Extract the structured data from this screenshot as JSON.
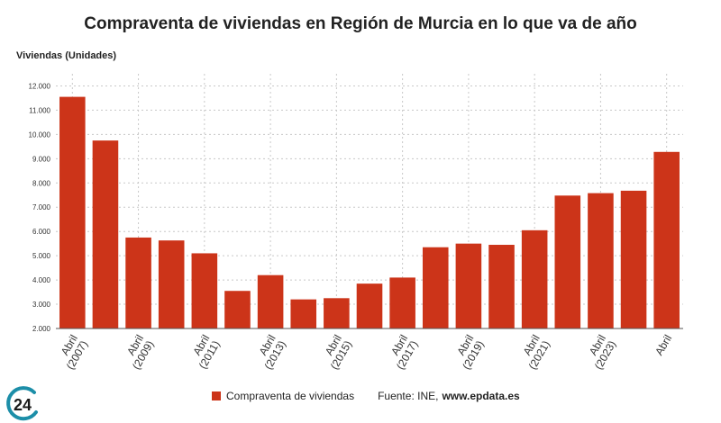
{
  "chart_data": {
    "type": "bar",
    "title": "Compraventa de viviendas en Región de Murcia en lo que va de año",
    "ylabel": "Viviendas (Unidades)",
    "xlabel": "",
    "ylim": [
      2000,
      12500
    ],
    "yticks": [
      2000,
      3000,
      4000,
      5000,
      6000,
      7000,
      8000,
      9000,
      10000,
      11000,
      12000
    ],
    "ytick_labels": [
      "2.000",
      "3.000",
      "4.000",
      "5.000",
      "6.000",
      "7.000",
      "8.000",
      "9.000",
      "10.000",
      "11.000",
      "12.000"
    ],
    "categories": [
      "Abril (2007)",
      "",
      "Abril (2009)",
      "",
      "Abril (2011)",
      "",
      "Abril (2013)",
      "",
      "Abril (2015)",
      "",
      "Abril (2017)",
      "",
      "Abril (2019)",
      "",
      "Abril (2021)",
      "",
      "Abril (2023)",
      "",
      "Abril"
    ],
    "series": [
      {
        "name": "Compraventa de viviendas",
        "values": [
          11550,
          9750,
          5750,
          5630,
          5100,
          3550,
          4200,
          3200,
          3250,
          3850,
          4100,
          5350,
          5500,
          5450,
          6050,
          7480,
          7580,
          7680,
          9280
        ]
      }
    ],
    "grid": true,
    "legend_position": "bottom",
    "bar_color": "#cc3419"
  },
  "source_label": "Fuente: INE,",
  "source_site": "www.epdata.es",
  "logo_text": "24",
  "colors": {
    "logo": "#1c8ea8",
    "grid": "#c8c8c8",
    "axis": "#555555"
  }
}
